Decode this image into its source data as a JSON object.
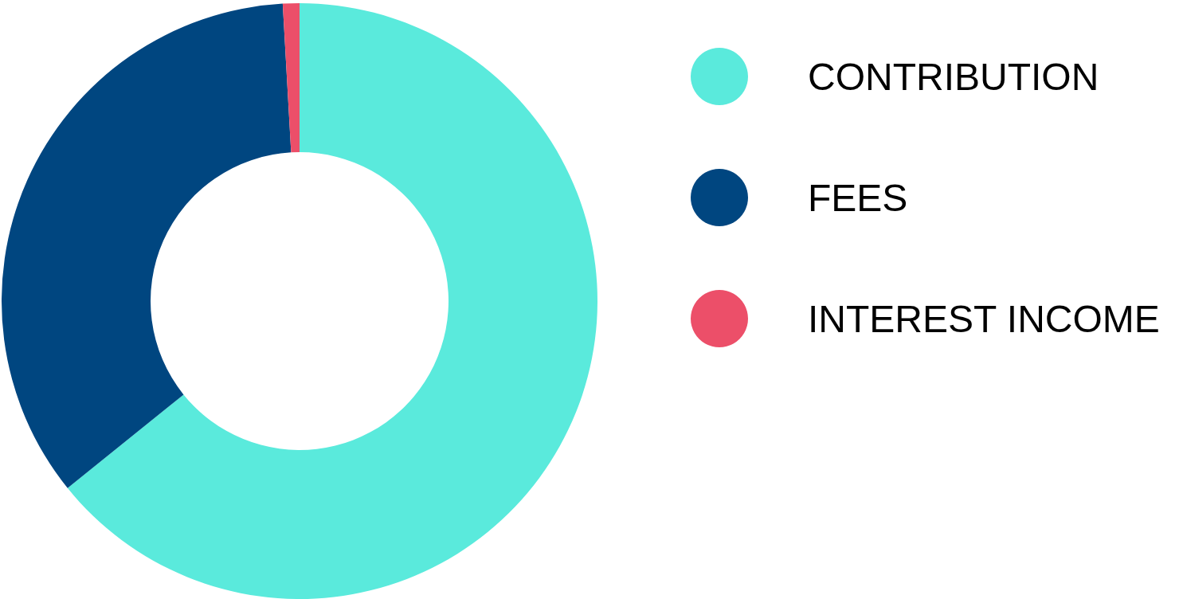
{
  "chart_data": {
    "type": "donut",
    "categories": [
      "CONTRIBUTION",
      "FEES",
      "INTEREST INCOME"
    ],
    "values": [
      64.2,
      34.9,
      0.9
    ],
    "colors": [
      "#5aeadc",
      "#004680",
      "#ec4f69"
    ],
    "legend": "right"
  }
}
